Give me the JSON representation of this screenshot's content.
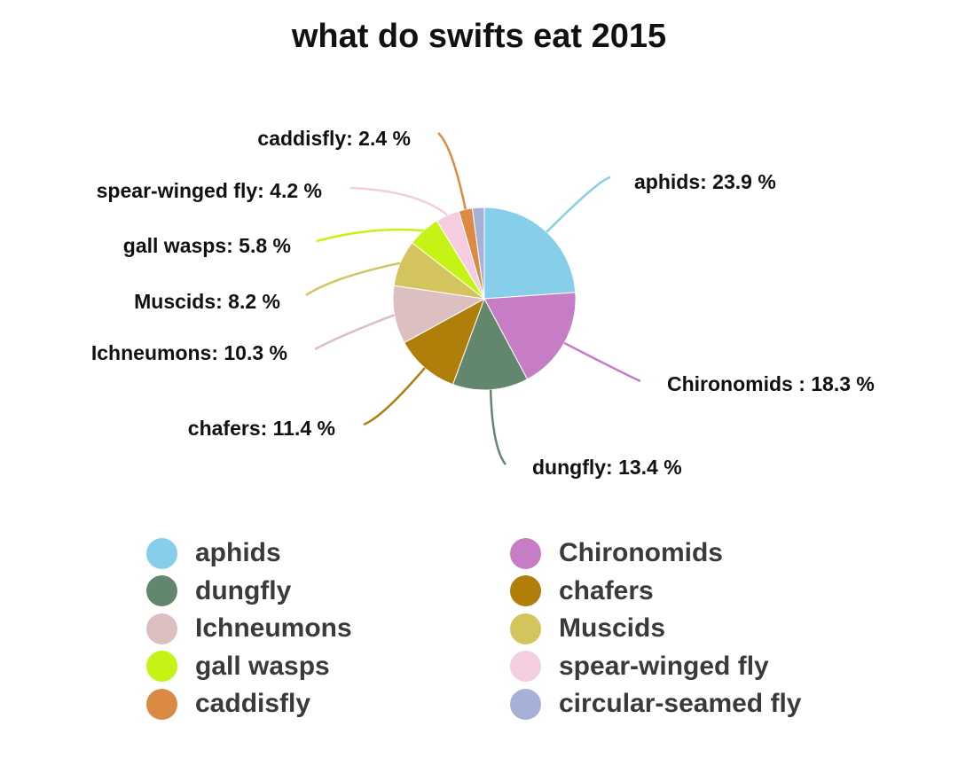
{
  "chart_data": {
    "type": "pie",
    "title": "what do swifts eat 2015",
    "legend_position": "bottom",
    "slices": [
      {
        "name": "aphids",
        "value": 23.9,
        "label": "aphids: 23.9 %",
        "color": "#87ceea"
      },
      {
        "name": "Chironomids",
        "value": 18.3,
        "label": "Chironomids : 18.3 %",
        "color": "#c77cc6"
      },
      {
        "name": "dungfly",
        "value": 13.4,
        "label": "dungfly: 13.4 %",
        "color": "#62876c"
      },
      {
        "name": "chafers",
        "value": 11.4,
        "label": "chafers: 11.4 %",
        "color": "#b07f0a"
      },
      {
        "name": "Ichneumons",
        "value": 10.3,
        "label": "Ichneumons: 10.3 %",
        "color": "#dcbfc0"
      },
      {
        "name": "Muscids",
        "value": 8.2,
        "label": "Muscids: 8.2 %",
        "color": "#d3c45e"
      },
      {
        "name": "gall wasps",
        "value": 5.8,
        "label": "gall wasps: 5.8 %",
        "color": "#c5f315"
      },
      {
        "name": "spear-winged fly",
        "value": 4.2,
        "label": "spear-winged fly: 4.2 %",
        "color": "#f4cde0"
      },
      {
        "name": "caddisfly",
        "value": 2.4,
        "label": "caddisfly: 2.4 %",
        "color": "#da8a42"
      },
      {
        "name": "circular-seamed fly",
        "value": 2.1,
        "label": "",
        "color": "#a6b1d7"
      }
    ],
    "legend": [
      {
        "label": "aphids",
        "color": "#87ceea"
      },
      {
        "label": "Chironomids",
        "color": "#c77cc6"
      },
      {
        "label": "dungfly",
        "color": "#62876c"
      },
      {
        "label": "chafers",
        "color": "#b07f0a"
      },
      {
        "label": "Ichneumons",
        "color": "#dcbfc0"
      },
      {
        "label": "Muscids",
        "color": "#d3c45e"
      },
      {
        "label": "gall wasps",
        "color": "#c5f315"
      },
      {
        "label": "spear-winged fly",
        "color": "#f4cde0"
      },
      {
        "label": "caddisfly",
        "color": "#da8a42"
      },
      {
        "label": "circular-seamed fly",
        "color": "#a6b1d7"
      }
    ]
  }
}
